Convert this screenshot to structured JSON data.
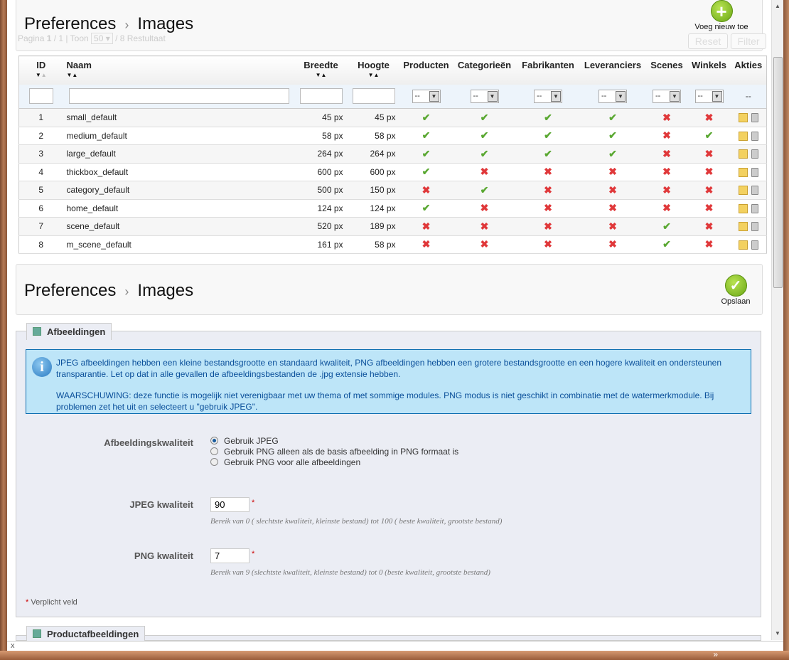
{
  "list_header": {
    "breadcrumb": [
      "Preferences",
      "Images"
    ],
    "pagination": {
      "prefix": "Pagina",
      "page": "1",
      "of": "/ 1 | Toon",
      "per_page": "50",
      "results": "/ 8 Restultaat"
    },
    "add_label": "Voeg nieuw toe",
    "reset_label": "Reset",
    "filter_label": "Filter"
  },
  "table": {
    "columns": [
      "ID",
      "Naam",
      "Breedte",
      "Hoogte",
      "Producten",
      "Categorieën",
      "Fabrikanten",
      "Leveranciers",
      "Scenes",
      "Winkels",
      "Akties"
    ],
    "filter_select_value": "--",
    "actions_filter": "--",
    "rows": [
      {
        "id": "1",
        "name": "small_default",
        "width": "45 px",
        "height": "45 px",
        "flags": [
          true,
          true,
          true,
          true,
          false,
          false
        ]
      },
      {
        "id": "2",
        "name": "medium_default",
        "width": "58 px",
        "height": "58 px",
        "flags": [
          true,
          true,
          true,
          true,
          false,
          true
        ]
      },
      {
        "id": "3",
        "name": "large_default",
        "width": "264 px",
        "height": "264 px",
        "flags": [
          true,
          true,
          true,
          true,
          false,
          false
        ]
      },
      {
        "id": "4",
        "name": "thickbox_default",
        "width": "600 px",
        "height": "600 px",
        "flags": [
          true,
          false,
          false,
          false,
          false,
          false
        ]
      },
      {
        "id": "5",
        "name": "category_default",
        "width": "500 px",
        "height": "150 px",
        "flags": [
          false,
          true,
          false,
          false,
          false,
          false
        ]
      },
      {
        "id": "6",
        "name": "home_default",
        "width": "124 px",
        "height": "124 px",
        "flags": [
          true,
          false,
          false,
          false,
          false,
          false
        ]
      },
      {
        "id": "7",
        "name": "scene_default",
        "width": "520 px",
        "height": "189 px",
        "flags": [
          false,
          false,
          false,
          false,
          true,
          false
        ]
      },
      {
        "id": "8",
        "name": "m_scene_default",
        "width": "161 px",
        "height": "58 px",
        "flags": [
          false,
          false,
          false,
          false,
          true,
          false
        ]
      }
    ]
  },
  "settings_header": {
    "breadcrumb": [
      "Preferences",
      "Images"
    ],
    "save_label": "Opslaan"
  },
  "afbeeldingen": {
    "legend": "Afbeeldingen",
    "info_1": "JPEG afbeeldingen hebben een kleine bestandsgrootte en standaard kwaliteit, PNG afbeeldingen hebben een grotere bestandsgrootte en een hogere kwaliteit en ondersteunen transparantie. Let op dat in alle gevallen de afbeeldingsbestanden de .jpg extensie hebben.",
    "info_2": "WAARSCHUWING: deze functie is mogelijk niet verenigbaar met uw thema of met sommige modules. PNG modus is niet geschikt in combinatie met de watermerkmodule. Bij problemen zet het uit en selecteert u \"gebruik JPEG\".",
    "quality_label": "Afbeeldingskwaliteit",
    "quality_options": [
      "Gebruik JPEG",
      "Gebruik PNG alleen als de basis afbeelding in PNG formaat is",
      "Gebruik PNG voor alle afbeeldingen"
    ],
    "quality_selected": 0,
    "jpeg_label": "JPEG kwaliteit",
    "jpeg_value": "90",
    "jpeg_hint": "Bereik van 0 ( slechtste kwaliteit, kleinste bestand) tot 100 ( beste kwaliteit, grootste bestand)",
    "png_label": "PNG kwaliteit",
    "png_value": "7",
    "png_hint": "Bereik van 9 (slechtste kwaliteit, kleinste bestand) tot 0 (beste kwaliteit, grootste bestand)",
    "required_star": "*",
    "required_note": "Verplicht veld"
  },
  "productafbeeldingen": {
    "legend": "Productafbeeldingen"
  },
  "bottom_bar": {
    "close": "x"
  },
  "taskbar": {
    "more": "»"
  },
  "colors": {
    "check": "#5aa832",
    "cross": "#e0383a",
    "info_bg": "#bde5f8",
    "add_green": "#7cbc1e"
  }
}
